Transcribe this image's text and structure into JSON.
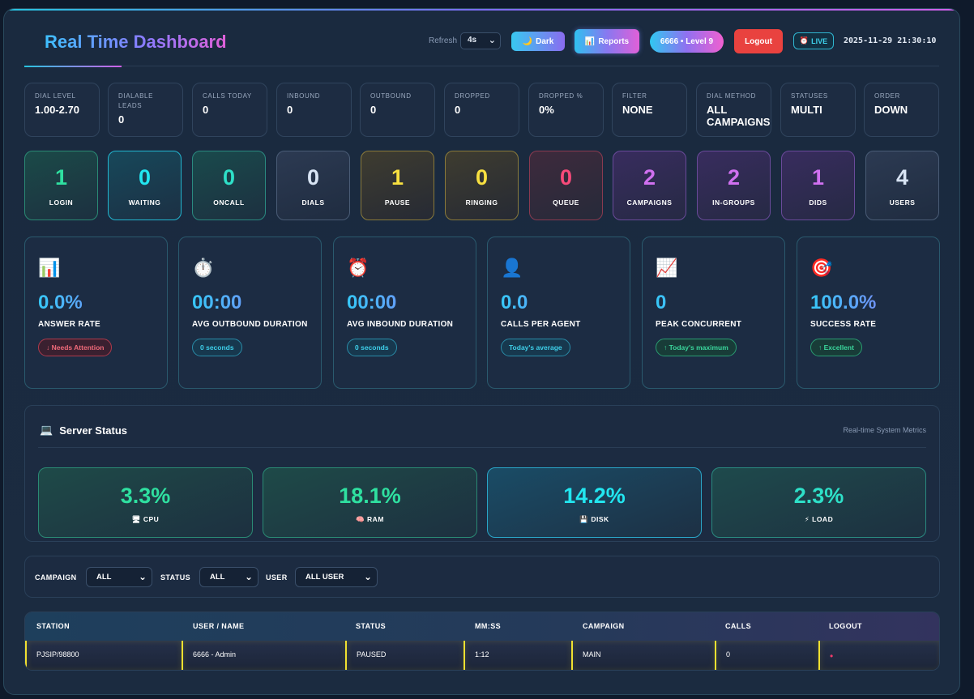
{
  "header": {
    "title": "Real Time Dashboard",
    "refresh_label": "Refresh",
    "refresh_value": "4s",
    "dark_label": "Dark",
    "reports_label": "Reports",
    "user_label": "6666 • Level 9",
    "logout_label": "Logout",
    "live_label": "LIVE",
    "datetime": "2025-11-29 21:30:10"
  },
  "info_boxes": [
    {
      "label": "DIAL LEVEL",
      "value": "1.00-2.70"
    },
    {
      "label": "DIALABLE LEADS",
      "value": "0"
    },
    {
      "label": "CALLS TODAY",
      "value": "0"
    },
    {
      "label": "INBOUND",
      "value": "0"
    },
    {
      "label": "OUTBOUND",
      "value": "0"
    },
    {
      "label": "DROPPED",
      "value": "0"
    },
    {
      "label": "DROPPED %",
      "value": "0%"
    },
    {
      "label": "FILTER",
      "value": "NONE"
    },
    {
      "label": "DIAL METHOD",
      "value": "ALL CAMPAIGNS"
    },
    {
      "label": "STATUSES",
      "value": "MULTI"
    },
    {
      "label": "ORDER",
      "value": "DOWN"
    }
  ],
  "tiles": [
    {
      "value": "1",
      "label": "LOGIN",
      "color": "#2fe0a0"
    },
    {
      "value": "0",
      "label": "WAITING",
      "color": "#22e6f0"
    },
    {
      "value": "0",
      "label": "ONCALL",
      "color": "#2ee0c8"
    },
    {
      "value": "0",
      "label": "DIALS",
      "color": "#d8e4f4"
    },
    {
      "value": "1",
      "label": "PAUSE",
      "color": "#f8e040"
    },
    {
      "value": "0",
      "label": "RINGING",
      "color": "#f8e040"
    },
    {
      "value": "0",
      "label": "QUEUE",
      "color": "#f84a7a"
    },
    {
      "value": "2",
      "label": "CAMPAIGNS",
      "color": "#d070f0"
    },
    {
      "value": "2",
      "label": "IN-GROUPS",
      "color": "#d070f0"
    },
    {
      "value": "1",
      "label": "DIDS",
      "color": "#d070f0"
    },
    {
      "value": "4",
      "label": "USERS",
      "color": "#d8e4f4"
    }
  ],
  "kpis": [
    {
      "icon": "📊",
      "value": "0.0%",
      "label": "ANSWER RATE",
      "pill": "↓ Needs Attention"
    },
    {
      "icon": "⏱️",
      "value": "00:00",
      "label": "AVG OUTBOUND DURATION",
      "pill": "0 seconds"
    },
    {
      "icon": "⏰",
      "value": "00:00",
      "label": "AVG INBOUND DURATION",
      "pill": "0 seconds"
    },
    {
      "icon": "👤",
      "value": "0.0",
      "label": "CALLS PER AGENT",
      "pill": "Today's average"
    },
    {
      "icon": "📈",
      "value": "0",
      "label": "PEAK CONCURRENT",
      "pill": "↑ Today's maximum"
    },
    {
      "icon": "🎯",
      "value": "100.0%",
      "label": "SUCCESS RATE",
      "pill": "↑ Excellent"
    }
  ],
  "server": {
    "title": "Server Status",
    "subtitle": "Real-time System Metrics",
    "metrics": [
      {
        "value": "3.3%",
        "icon": "🖥",
        "label": "CPU"
      },
      {
        "value": "18.1%",
        "icon": "🧠",
        "label": "RAM"
      },
      {
        "value": "14.2%",
        "icon": "💾",
        "label": "DISK"
      },
      {
        "value": "2.3%",
        "icon": "⚡",
        "label": "LOAD"
      }
    ]
  },
  "filters": {
    "campaign_label": "CAMPAIGN",
    "campaign_value": "ALL",
    "status_label": "STATUS",
    "status_value": "ALL",
    "user_label": "USER",
    "user_value": "ALL USER"
  },
  "table": {
    "headers": [
      "STATION",
      "USER / NAME",
      "STATUS",
      "MM:SS",
      "CAMPAIGN",
      "CALLS",
      "LOGOUT"
    ],
    "rows": [
      [
        "PJSIP/98800",
        "6666 - Admin",
        "PAUSED",
        "1:12",
        "MAIN",
        "0",
        "•"
      ]
    ]
  }
}
